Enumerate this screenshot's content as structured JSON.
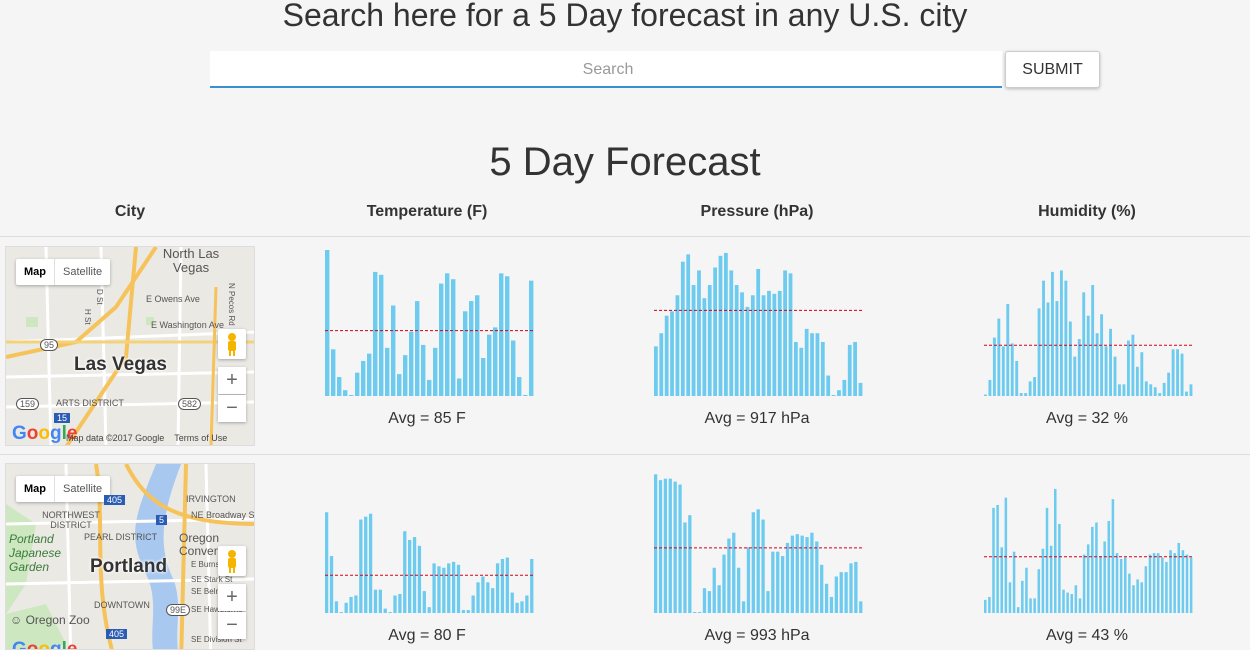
{
  "header": {
    "title": "Search here for a 5 Day forecast in any U.S. city"
  },
  "search": {
    "placeholder": "Search",
    "value": "",
    "submit_label": "SUBMIT"
  },
  "forecast": {
    "title": "5 Day Forecast",
    "columns": [
      "City",
      "Temperature (F)",
      "Pressure (hPa)",
      "Humidity (%)"
    ],
    "colors": {
      "bar": "#6ccbef",
      "avg_line": "#d0021b"
    },
    "rows": [
      {
        "city": "Las Vegas",
        "map": {
          "type_map": "Map",
          "type_satellite": "Satellite",
          "labels": [
            "North Las Vegas",
            "E Owens Ave",
            "E Washington Ave",
            "ARTS DISTRICT",
            "N Pecos Rd",
            "D St",
            "H St"
          ],
          "shields": [
            "95",
            "159",
            "582",
            "15"
          ],
          "attribution": "Map data ©2017 Google",
          "terms": "Terms of Use",
          "logo": "Google"
        },
        "temperature": {
          "avg_label": "Avg = 85 F",
          "values": [
            100,
            32,
            13,
            4,
            0,
            16,
            24,
            29,
            85,
            83,
            33,
            62,
            15,
            28,
            44,
            65,
            35,
            11,
            33,
            77,
            84,
            80,
            12,
            58,
            65,
            69,
            26,
            42,
            47,
            84,
            82,
            38,
            13,
            0,
            79
          ]
        },
        "pressure": {
          "avg_label": "Avg = 917 hPa",
          "values": [
            34,
            43,
            55,
            58,
            69,
            92,
            97,
            76,
            86,
            67,
            76,
            88,
            96,
            98,
            86,
            76,
            71,
            61,
            69,
            87,
            69,
            72,
            70,
            72,
            86,
            84,
            37,
            33,
            46,
            43,
            43,
            37,
            14,
            0,
            4,
            11,
            35,
            37,
            9
          ]
        },
        "humidity": {
          "avg_label": "Avg = 32 %",
          "values": [
            1,
            11,
            40,
            53,
            34,
            63,
            36,
            24,
            2,
            2,
            10,
            13,
            60,
            79,
            64,
            85,
            65,
            86,
            79,
            51,
            27,
            39,
            71,
            55,
            76,
            43,
            56,
            34,
            46,
            27,
            8,
            8,
            38,
            42,
            20,
            30,
            10,
            8,
            6,
            2,
            9,
            16,
            32,
            32,
            29,
            3,
            8
          ]
        }
      },
      {
        "city": "Portland",
        "map": {
          "type_map": "Map",
          "type_satellite": "Satellite",
          "labels": [
            "IRVINGTON",
            "NORTHWEST DISTRICT",
            "PEARL DISTRICT",
            "NE Broadway St",
            "Oregon Conven",
            "E Burnside",
            "SE Stark St",
            "SE Belmont",
            "SE Hawthorne",
            "SE Division St",
            "DOWNTOWN",
            "Portland Japanese Garden",
            "Oregon Zoo"
          ],
          "shields": [
            "405",
            "5",
            "99E"
          ],
          "attribution": "",
          "terms": "",
          "logo": "Google"
        },
        "temperature": {
          "avg_label": "Avg = 80 F",
          "values": [
            69,
            39,
            8,
            0,
            7,
            11,
            12,
            64,
            66,
            68,
            16,
            16,
            3,
            0,
            12,
            13,
            56,
            50,
            52,
            46,
            15,
            4,
            34,
            32,
            31,
            34,
            35,
            33,
            2,
            2,
            12,
            21,
            25,
            21,
            17,
            34,
            37,
            38,
            14,
            7,
            8,
            12,
            37
          ]
        },
        "pressure": {
          "avg_label": "Avg = 993 hPa",
          "values": [
            95,
            91,
            92,
            92,
            90,
            88,
            62,
            67,
            0,
            0,
            17,
            15,
            31,
            19,
            40,
            51,
            55,
            31,
            8,
            45,
            69,
            71,
            64,
            15,
            42,
            42,
            39,
            48,
            53,
            54,
            53,
            52,
            55,
            49,
            33,
            20,
            11,
            25,
            28,
            28,
            34,
            35,
            8
          ]
        },
        "humidity": {
          "avg_label": "Avg = 43 %",
          "values": [
            9,
            11,
            72,
            74,
            45,
            79,
            21,
            42,
            4,
            22,
            31,
            10,
            10,
            30,
            44,
            72,
            46,
            85,
            61,
            16,
            14,
            13,
            19,
            10,
            40,
            47,
            59,
            62,
            39,
            49,
            63,
            78,
            41,
            37,
            38,
            27,
            19,
            23,
            21,
            32,
            40,
            41,
            41,
            38,
            35,
            43,
            41,
            48,
            43,
            40,
            38
          ]
        }
      }
    ]
  }
}
